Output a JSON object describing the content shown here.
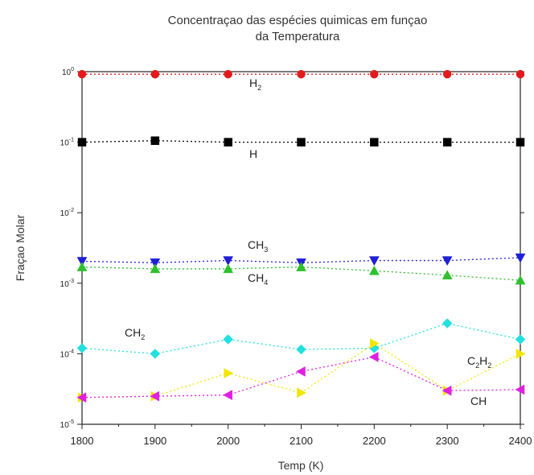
{
  "chart_data": {
    "type": "scatter",
    "title": [
      "Concentraçao das espécies quimicas em funçao",
      "da Temperatura"
    ],
    "xlabel": "Temp (K)",
    "ylabel": "Fraçao Molar",
    "xlim": [
      1800,
      2400
    ],
    "ylim": [
      1e-05,
      1
    ],
    "yscale": "log",
    "grid": false,
    "x_ticks": [
      "1800",
      "1900",
      "2000",
      "2100",
      "2200",
      "2300",
      "2400"
    ],
    "y_ticks": [
      {
        "base": "10",
        "exp": "0"
      },
      {
        "base": "10",
        "exp": "-1"
      },
      {
        "base": "10",
        "exp": "-2"
      },
      {
        "base": "10",
        "exp": "-3"
      },
      {
        "base": "10",
        "exp": "-4"
      },
      {
        "base": "10",
        "exp": "-5"
      }
    ],
    "x": [
      1800,
      1900,
      2000,
      2100,
      2200,
      2300,
      2400
    ],
    "series": [
      {
        "key": "h2",
        "label": "H",
        "sub": "2",
        "color": "#e31a1c",
        "marker": "circle",
        "values": [
          0.92,
          0.92,
          0.92,
          0.92,
          0.92,
          0.92,
          0.92
        ]
      },
      {
        "key": "h",
        "label": "H",
        "sub": "",
        "color": "#000000",
        "marker": "square",
        "values": [
          0.1,
          0.105,
          0.1,
          0.1,
          0.1,
          0.1,
          0.1
        ]
      },
      {
        "key": "ch3",
        "label": "CH",
        "sub": "3",
        "color": "#1f1fd6",
        "marker": "triangle-down",
        "values": [
          0.00205,
          0.00195,
          0.0021,
          0.00195,
          0.0021,
          0.0021,
          0.0023
        ]
      },
      {
        "key": "ch4",
        "label": "CH",
        "sub": "4",
        "color": "#2ec02e",
        "marker": "triangle-up",
        "values": [
          0.0017,
          0.0016,
          0.0016,
          0.0017,
          0.0015,
          0.0013,
          0.0011
        ]
      },
      {
        "key": "ch2",
        "label": "CH",
        "sub": "2",
        "color": "#22e0e0",
        "marker": "diamond",
        "values": [
          0.00012,
          0.0001,
          0.00016,
          0.000115,
          0.00012,
          0.00027,
          0.00016
        ]
      },
      {
        "key": "c2h2",
        "label": "C",
        "sub": "2",
        "label2": "H",
        "sub2": "2",
        "color": "#f2e600",
        "marker": "triangle-right",
        "values": [
          2.4e-05,
          2.5e-05,
          5.3e-05,
          2.8e-05,
          0.00014,
          3e-05,
          0.0001
        ]
      },
      {
        "key": "ch",
        "label": "CH",
        "sub": "",
        "color": "#e020e0",
        "marker": "triangle-left",
        "values": [
          2.4e-05,
          2.5e-05,
          2.6e-05,
          5.6e-05,
          9e-05,
          3e-05,
          3.1e-05
        ]
      }
    ]
  }
}
